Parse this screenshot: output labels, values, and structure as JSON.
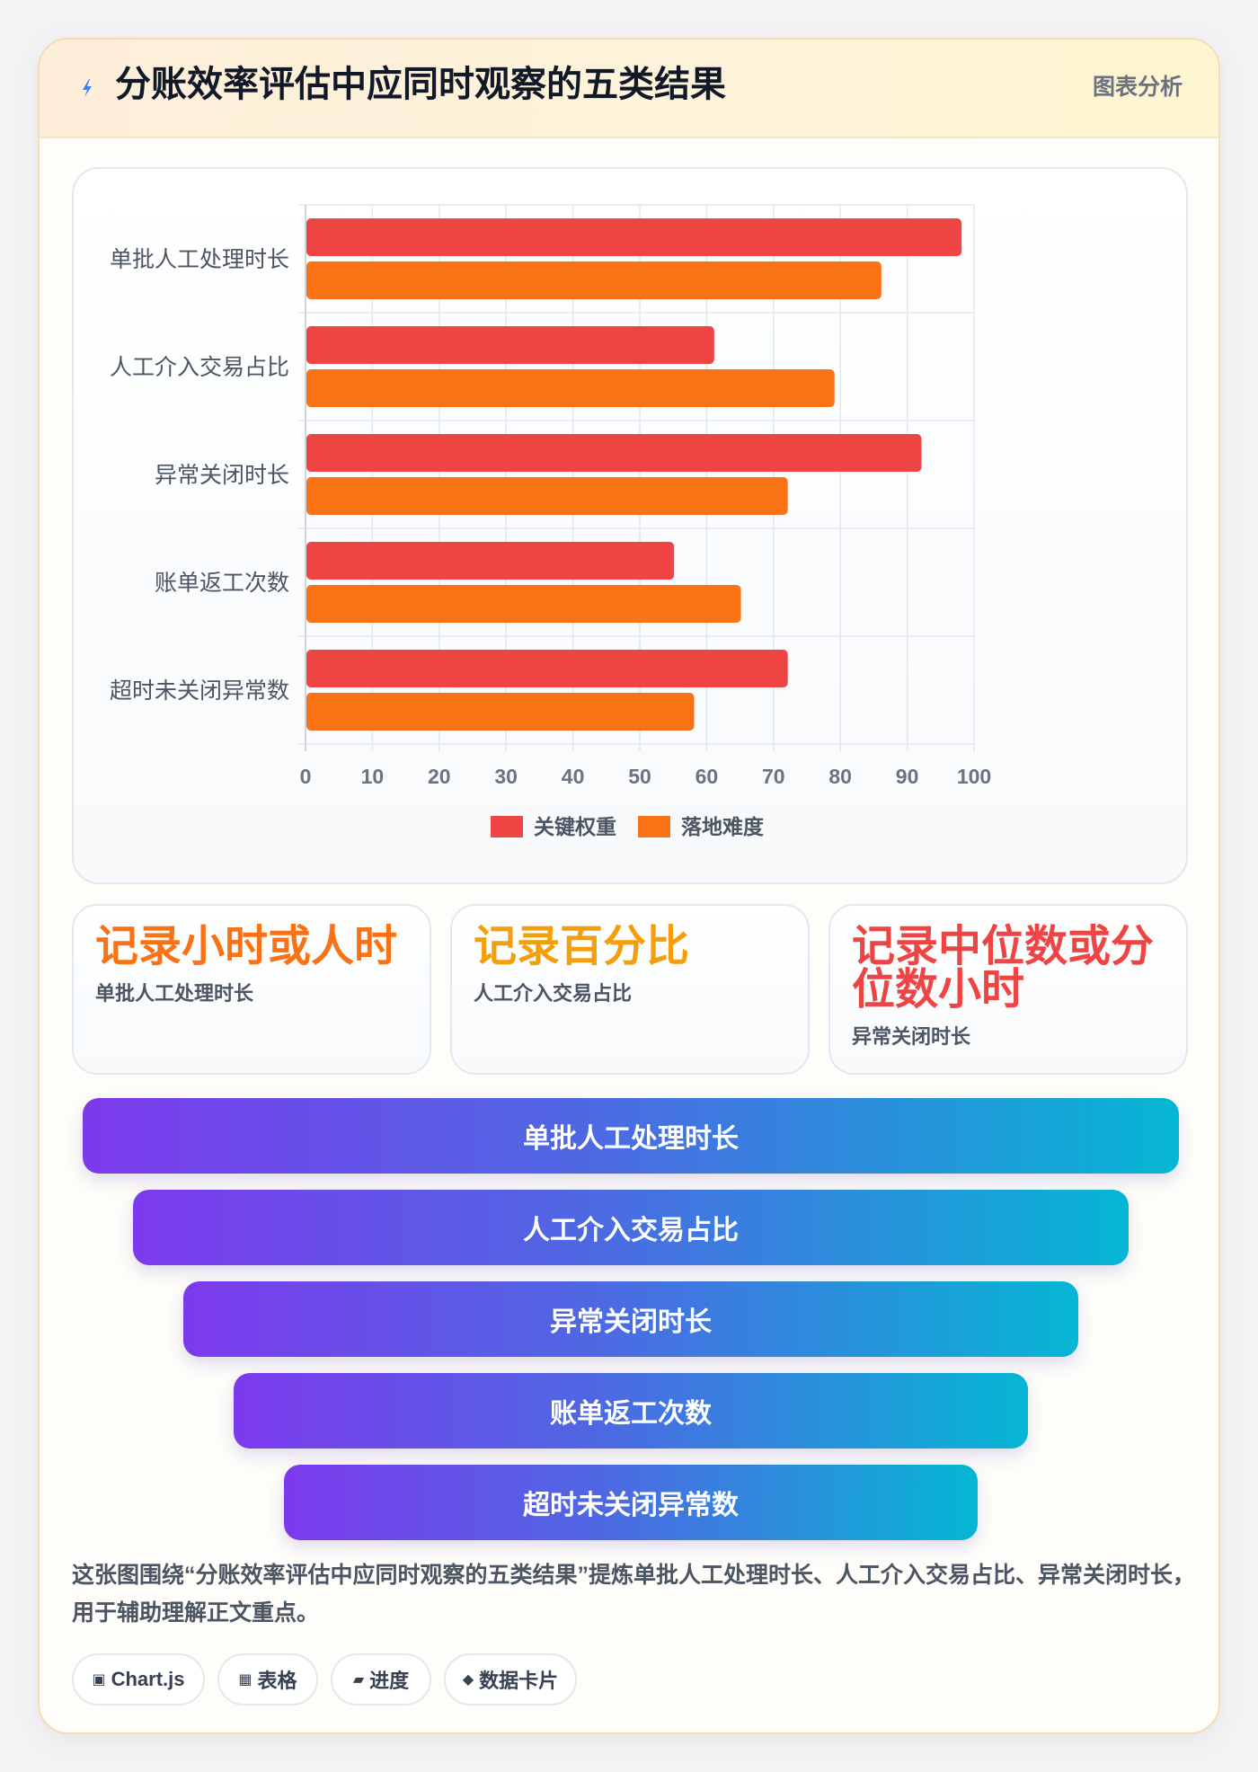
{
  "header": {
    "title": "分账效率评估中应同时观察的五类结果",
    "tag": "图表分析"
  },
  "chart_data": {
    "type": "bar",
    "orientation": "horizontal",
    "categories": [
      "单批人工处理时长",
      "人工介入交易占比",
      "异常关闭时长",
      "账单返工次数",
      "超时未关闭异常数"
    ],
    "series": [
      {
        "name": "关键权重",
        "values": [
          98,
          61,
          92,
          55,
          72
        ],
        "color": "#ef4444"
      },
      {
        "name": "落地难度",
        "values": [
          86,
          79,
          72,
          65,
          58
        ],
        "color": "#f97316"
      }
    ],
    "xlim": [
      0,
      100
    ],
    "xticks": [
      "0",
      "10",
      "20",
      "30",
      "40",
      "50",
      "60",
      "70",
      "80",
      "90",
      "100"
    ],
    "grid": true,
    "legend_position": "bottom"
  },
  "stats": [
    {
      "value": "记录小时或人时",
      "label": "单批人工处理时长",
      "color": "#f97316"
    },
    {
      "value": "记录百分比",
      "label": "人工介入交易占比",
      "color": "#f59e0b"
    },
    {
      "value": "记录中位数或分位数小时",
      "label": "异常关闭时长",
      "color": "#ef4444"
    }
  ],
  "funnel": [
    "单批人工处理时长",
    "人工介入交易占比",
    "异常关闭时长",
    "账单返工次数",
    "超时未关闭异常数"
  ],
  "caption": "这张图围绕“分账效率评估中应同时观察的五类结果”提炼单批人工处理时长、人工介入交易占比、异常关闭时长，用于辅助理解正文重点。",
  "tags": [
    {
      "icon": "▣",
      "icon_name": "chart-icon",
      "label": "Chart.js"
    },
    {
      "icon": "▦",
      "icon_name": "table-icon",
      "label": "表格"
    },
    {
      "icon": "▰",
      "icon_name": "progress-icon",
      "label": "进度"
    },
    {
      "icon": "◆",
      "icon_name": "data-card-icon",
      "label": "数据卡片"
    }
  ]
}
